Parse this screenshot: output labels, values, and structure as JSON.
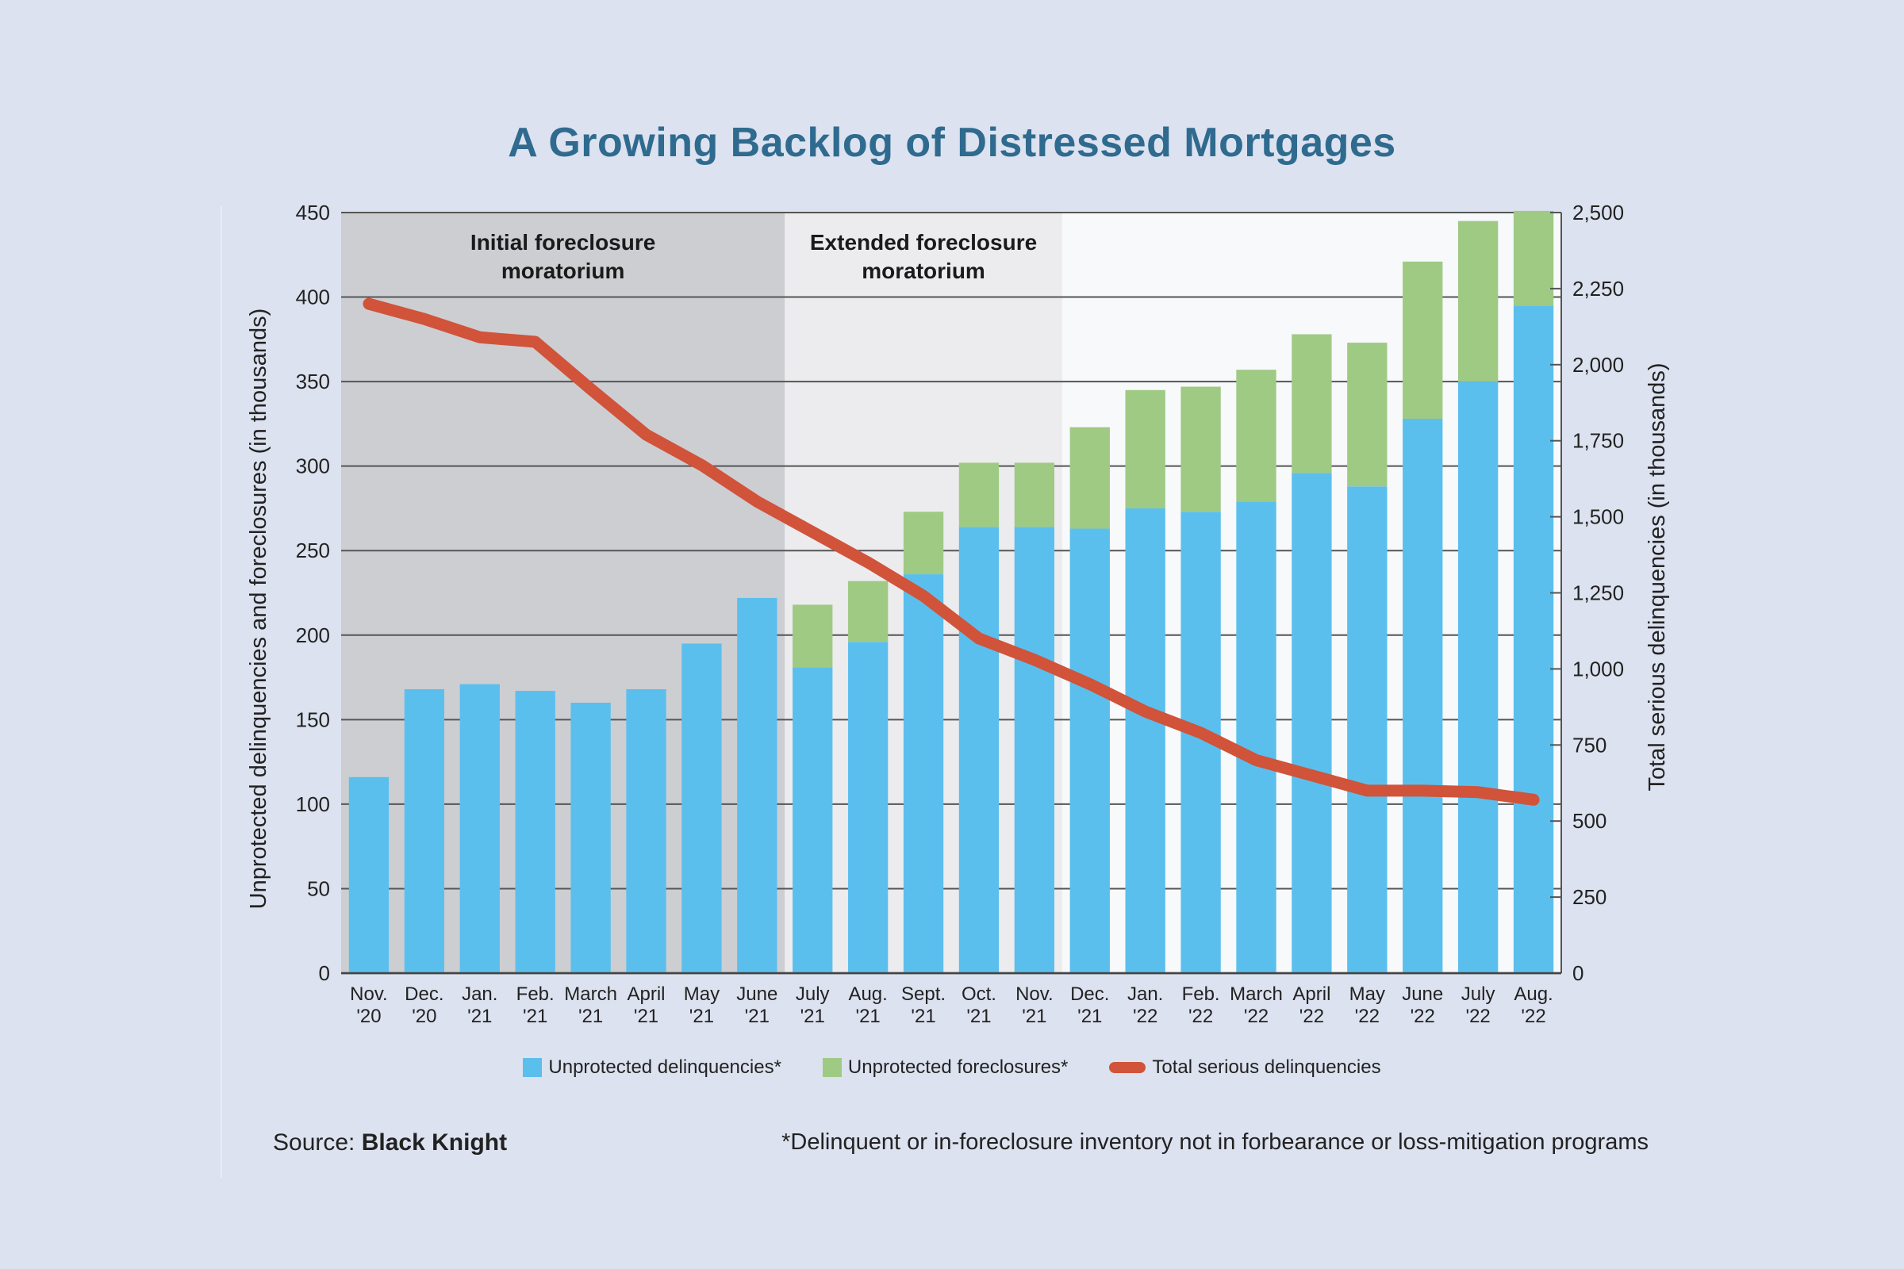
{
  "chart_data": {
    "type": "bar",
    "title": "A Growing Backlog of Distressed Mortgages",
    "categories": [
      [
        "Nov.",
        "'20"
      ],
      [
        "Dec.",
        "'20"
      ],
      [
        "Jan.",
        "'21"
      ],
      [
        "Feb.",
        "'21"
      ],
      [
        "March",
        "'21"
      ],
      [
        "April",
        "'21"
      ],
      [
        "May",
        "'21"
      ],
      [
        "June",
        "'21"
      ],
      [
        "July",
        "'21"
      ],
      [
        "Aug.",
        "'21"
      ],
      [
        "Sept.",
        "'21"
      ],
      [
        "Oct.",
        "'21"
      ],
      [
        "Nov.",
        "'21"
      ],
      [
        "Dec.",
        "'21"
      ],
      [
        "Jan.",
        "'22"
      ],
      [
        "Feb.",
        "'22"
      ],
      [
        "March",
        "'22"
      ],
      [
        "April",
        "'22"
      ],
      [
        "May",
        "'22"
      ],
      [
        "June",
        "'22"
      ],
      [
        "July",
        "'22"
      ],
      [
        "Aug.",
        "'22"
      ]
    ],
    "series": [
      {
        "name": "Unprotected delinquencies*",
        "type": "bar-stacked",
        "axis": "left",
        "color": "#5bbfed",
        "values": [
          116,
          168,
          171,
          167,
          160,
          168,
          195,
          222,
          181,
          196,
          236,
          264,
          264,
          263,
          275,
          273,
          279,
          296,
          288,
          328,
          350,
          395
        ]
      },
      {
        "name": "Unprotected foreclosures*",
        "type": "bar-stacked",
        "axis": "left",
        "color": "#9fca84",
        "values": [
          0,
          0,
          0,
          0,
          0,
          0,
          0,
          0,
          37,
          36,
          37,
          38,
          38,
          60,
          70,
          74,
          78,
          82,
          85,
          93,
          95,
          56
        ]
      },
      {
        "name": "Total serious delinquencies",
        "type": "line",
        "axis": "right",
        "color": "#d0533a",
        "values": [
          2200,
          2150,
          2090,
          2075,
          1920,
          1770,
          1670,
          1550,
          1450,
          1350,
          1240,
          1100,
          1030,
          950,
          860,
          790,
          700,
          650,
          600,
          600,
          595,
          570
        ]
      }
    ],
    "ylabel": "Unprotected delinquencies and foreclosures (in thousands)",
    "ylabel_right": "Total serious delinquencies (in thousands)",
    "ylim": [
      0,
      450
    ],
    "ylim_right": [
      0,
      2500
    ],
    "yticks": [
      "0",
      "50",
      "100",
      "150",
      "200",
      "250",
      "300",
      "350",
      "400",
      "450"
    ],
    "yticks_right": [
      "0",
      "250",
      "500",
      "750",
      "1,000",
      "1,250",
      "1,500",
      "1,750",
      "2,000",
      "2,250",
      "2,500"
    ],
    "grid": true,
    "legend_position": "bottom",
    "regions": [
      {
        "label_line1": "Initial foreclosure",
        "label_line2": "moratorium",
        "from_index": 0,
        "to_index": 8,
        "color": "#cdced2"
      },
      {
        "label_line1": "Extended foreclosure",
        "label_line2": "moratorium",
        "from_index": 8,
        "to_index": 13,
        "color": "#ececee"
      }
    ]
  },
  "legend": {
    "items": [
      {
        "label": "Unprotected delinquencies*",
        "color": "#5bbfed"
      },
      {
        "label": "Unprotected foreclosures*",
        "color": "#9fca84"
      },
      {
        "label": "Total serious delinquencies",
        "color": "#d0533a"
      }
    ]
  },
  "footer": {
    "source_prefix": "Source: ",
    "source_name": "Black Knight",
    "note": "*Delinquent or in-foreclosure inventory not in forbearance or loss-mitigation programs"
  }
}
